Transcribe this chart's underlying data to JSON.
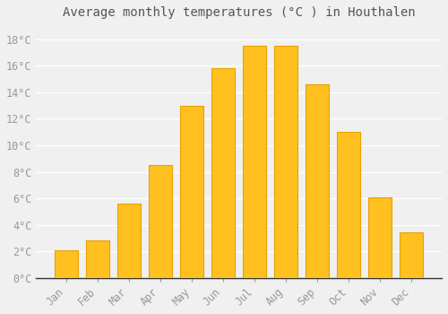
{
  "title": "Average monthly temperatures (°C ) in Houthalen",
  "months": [
    "Jan",
    "Feb",
    "Mar",
    "Apr",
    "May",
    "Jun",
    "Jul",
    "Aug",
    "Sep",
    "Oct",
    "Nov",
    "Dec"
  ],
  "temperatures": [
    2.1,
    2.8,
    5.6,
    8.5,
    13.0,
    15.8,
    17.5,
    17.5,
    14.6,
    11.0,
    6.1,
    3.4
  ],
  "bar_color": "#FFC020",
  "bar_edge_color": "#E8A000",
  "background_color": "#F0F0F0",
  "plot_bg_color": "#F0F0F0",
  "grid_color": "#FFFFFF",
  "text_color": "#999999",
  "axis_color": "#333333",
  "ylim": [
    0,
    19
  ],
  "yticks": [
    0,
    2,
    4,
    6,
    8,
    10,
    12,
    14,
    16,
    18
  ],
  "title_fontsize": 10,
  "tick_fontsize": 8.5,
  "bar_width": 0.75
}
